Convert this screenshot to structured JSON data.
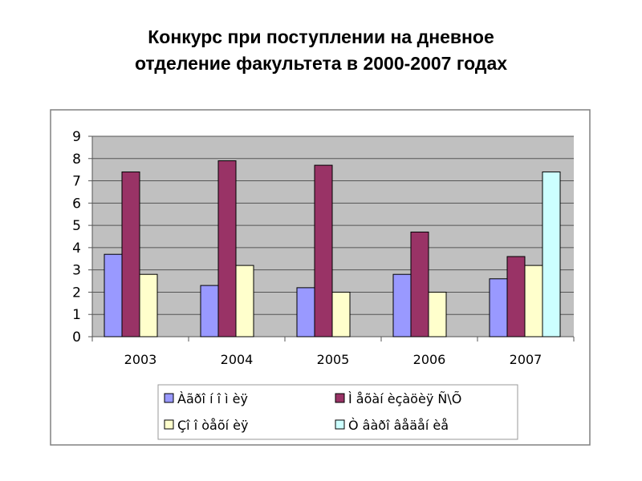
{
  "title_line1": "Конкурс при поступлении на дневное",
  "title_line2": "отделение факультета в 2000-2007 годах",
  "chart_data": {
    "type": "bar",
    "title": "Конкурс при поступлении на дневное отделение факультета в 2000-2007 годах",
    "categories": [
      "2003",
      "2004",
      "2005",
      "2006",
      "2007"
    ],
    "ylim": [
      0,
      9
    ],
    "yticks": [
      0,
      1,
      2,
      3,
      4,
      5,
      6,
      7,
      8,
      9
    ],
    "grid": true,
    "legend_position": "bottom",
    "plot_background": "#c0c0c0",
    "series": [
      {
        "name": "Àãðî í î ì èÿ",
        "color": "#9999ff",
        "values": [
          3.7,
          2.3,
          2.2,
          2.8,
          2.6
        ]
      },
      {
        "name": "Ì  åõàí èçàöèÿ Ñ\\Õ",
        "color": "#993366",
        "values": [
          7.4,
          7.9,
          7.7,
          4.7,
          3.6
        ]
      },
      {
        "name": "Çî î òåõí èÿ",
        "color": "#ffffcc",
        "values": [
          2.8,
          3.2,
          2.0,
          2.0,
          3.2
        ]
      },
      {
        "name": "Ò âàðî âåäåí èå",
        "color": "#ccffff",
        "values": [
          null,
          null,
          null,
          null,
          7.4
        ]
      }
    ]
  }
}
